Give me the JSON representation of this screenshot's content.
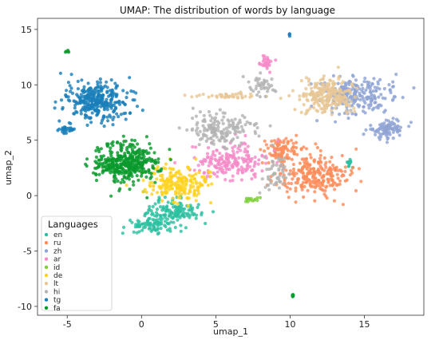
{
  "chart_data": {
    "type": "scatter",
    "title": "UMAP:  The distribution of words by language",
    "xlabel": "umap_1",
    "ylabel": "umap_2",
    "xlim": [
      -7.0,
      19.0
    ],
    "ylim": [
      -10.8,
      16.0
    ],
    "x_ticks": [
      -5,
      0,
      5,
      10,
      15
    ],
    "y_ticks": [
      -10,
      -5,
      0,
      5,
      10,
      15
    ],
    "grid": false,
    "legend": {
      "title": "Languages",
      "position": "lower-left",
      "entries": [
        "en",
        "ru",
        "zh",
        "ar",
        "id",
        "de",
        "lt",
        "hi",
        "tg",
        "fa"
      ]
    },
    "series": [
      {
        "name": "en",
        "color": "#2bc0a0",
        "clusters": [
          {
            "center": [
              2.0,
              -1.5
            ],
            "spread": [
              1.8,
              1.0
            ],
            "count": 150
          },
          {
            "center": [
              0.5,
              -2.8
            ],
            "spread": [
              1.5,
              0.6
            ],
            "count": 60
          },
          {
            "center": [
              14.0,
              3.0
            ],
            "spread": [
              0.2,
              0.4
            ],
            "count": 12
          }
        ]
      },
      {
        "name": "ru",
        "color": "#ff8c5a",
        "clusters": [
          {
            "center": [
              11.5,
              2.0
            ],
            "spread": [
              2.0,
              1.6
            ],
            "count": 260
          },
          {
            "center": [
              9.5,
              4.0
            ],
            "spread": [
              1.0,
              0.9
            ],
            "count": 90
          }
        ]
      },
      {
        "name": "zh",
        "color": "#8fa3d4",
        "clusters": [
          {
            "center": [
              14.5,
              9.0
            ],
            "spread": [
              2.0,
              1.4
            ],
            "count": 220
          },
          {
            "center": [
              16.5,
              6.0
            ],
            "spread": [
              1.0,
              0.7
            ],
            "count": 90
          }
        ]
      },
      {
        "name": "ar",
        "color": "#f58ac8",
        "clusters": [
          {
            "center": [
              6.0,
              3.0
            ],
            "spread": [
              2.0,
              1.4
            ],
            "count": 190
          },
          {
            "center": [
              8.5,
              12.0
            ],
            "spread": [
              0.5,
              0.6
            ],
            "count": 30
          }
        ]
      },
      {
        "name": "id",
        "color": "#7ecf3a",
        "clusters": [
          {
            "center": [
              7.5,
              -0.3
            ],
            "spread": [
              0.5,
              0.2
            ],
            "count": 14
          }
        ]
      },
      {
        "name": "de",
        "color": "#ffd21e",
        "clusters": [
          {
            "center": [
              2.5,
              1.0
            ],
            "spread": [
              1.8,
              1.3
            ],
            "count": 200
          }
        ]
      },
      {
        "name": "lt",
        "color": "#e8c796",
        "clusters": [
          {
            "center": [
              12.5,
              9.0
            ],
            "spread": [
              1.5,
              1.3
            ],
            "count": 230
          },
          {
            "center": [
              5.5,
              9.0
            ],
            "spread": [
              2.2,
              0.2
            ],
            "count": 40
          }
        ]
      },
      {
        "name": "hi",
        "color": "#b3b3b3",
        "clusters": [
          {
            "center": [
              5.5,
              6.0
            ],
            "spread": [
              1.8,
              1.2
            ],
            "count": 160
          },
          {
            "center": [
              8.0,
              10.0
            ],
            "spread": [
              0.9,
              0.7
            ],
            "count": 40
          },
          {
            "center": [
              9.0,
              2.0
            ],
            "spread": [
              0.6,
              1.3
            ],
            "count": 50
          }
        ]
      },
      {
        "name": "tg",
        "color": "#1a7fba",
        "clusters": [
          {
            "center": [
              -3.0,
              8.5
            ],
            "spread": [
              1.8,
              1.4
            ],
            "count": 320
          },
          {
            "center": [
              -5.0,
              6.0
            ],
            "spread": [
              0.5,
              0.4
            ],
            "count": 30
          },
          {
            "center": [
              10.0,
              14.5
            ],
            "spread": [
              0.1,
              0.1
            ],
            "count": 4
          }
        ]
      },
      {
        "name": "fa",
        "color": "#0a9a2c",
        "clusters": [
          {
            "center": [
              -1.0,
              3.0
            ],
            "spread": [
              1.8,
              1.5
            ],
            "count": 380
          },
          {
            "center": [
              -5.0,
              13.0
            ],
            "spread": [
              0.15,
              0.1
            ],
            "count": 5
          },
          {
            "center": [
              10.2,
              -9.0
            ],
            "spread": [
              0.05,
              0.2
            ],
            "count": 6
          }
        ]
      }
    ]
  }
}
